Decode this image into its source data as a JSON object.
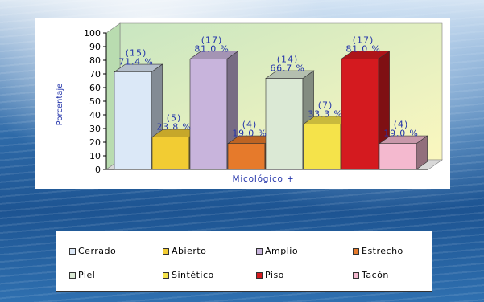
{
  "chart_data": {
    "type": "bar",
    "style": "3d-clustered",
    "ylabel": "Porcentaje",
    "xlabel": "Micológico +",
    "ylim": [
      0,
      100
    ],
    "yticks": [
      "0",
      "10",
      "20",
      "30",
      "40",
      "50",
      "60",
      "70",
      "80",
      "90",
      "100"
    ],
    "grid": false,
    "legend_position": "bottom",
    "bars": [
      {
        "series": "Cerrado",
        "value": 71.4,
        "color": "#dbe8f7",
        "count_label": "(15)",
        "pct_label": "71.4 %"
      },
      {
        "series": "Abierto",
        "value": 23.8,
        "color": "#f2cc33",
        "count_label": "(5)",
        "pct_label": "23.8 %"
      },
      {
        "series": "Amplio",
        "value": 81.0,
        "color": "#c8b4dc",
        "count_label": "(17)",
        "pct_label": "81.0 %"
      },
      {
        "series": "Estrecho",
        "value": 19.0,
        "color": "#e67a2b",
        "count_label": "(4)",
        "pct_label": "19.0 %"
      },
      {
        "series": "Piel",
        "value": 66.7,
        "color": "#dbe9d5",
        "count_label": "(14)",
        "pct_label": "66.7 %"
      },
      {
        "series": "Sintético",
        "value": 33.3,
        "color": "#f5e34a",
        "count_label": "(7)",
        "pct_label": "33.3 %"
      },
      {
        "series": "Piso",
        "value": 81.0,
        "color": "#d41a1f",
        "count_label": "(17)",
        "pct_label": "81.0 %"
      },
      {
        "series": "Tacón",
        "value": 19.0,
        "color": "#f4b9cf",
        "count_label": "(4)",
        "pct_label": "19.0 %"
      }
    ]
  },
  "legend": {
    "items": [
      {
        "label": "Cerrado",
        "color": "#dbe8f7"
      },
      {
        "label": "Abierto",
        "color": "#f2cc33"
      },
      {
        "label": "Amplio",
        "color": "#c8b4dc"
      },
      {
        "label": "Estrecho",
        "color": "#e67a2b"
      },
      {
        "label": "Piel",
        "color": "#dbe9d5"
      },
      {
        "label": "Sintético",
        "color": "#f5e34a"
      },
      {
        "label": "Piso",
        "color": "#d41a1f"
      },
      {
        "label": "Tacón",
        "color": "#f4b9cf"
      }
    ]
  }
}
